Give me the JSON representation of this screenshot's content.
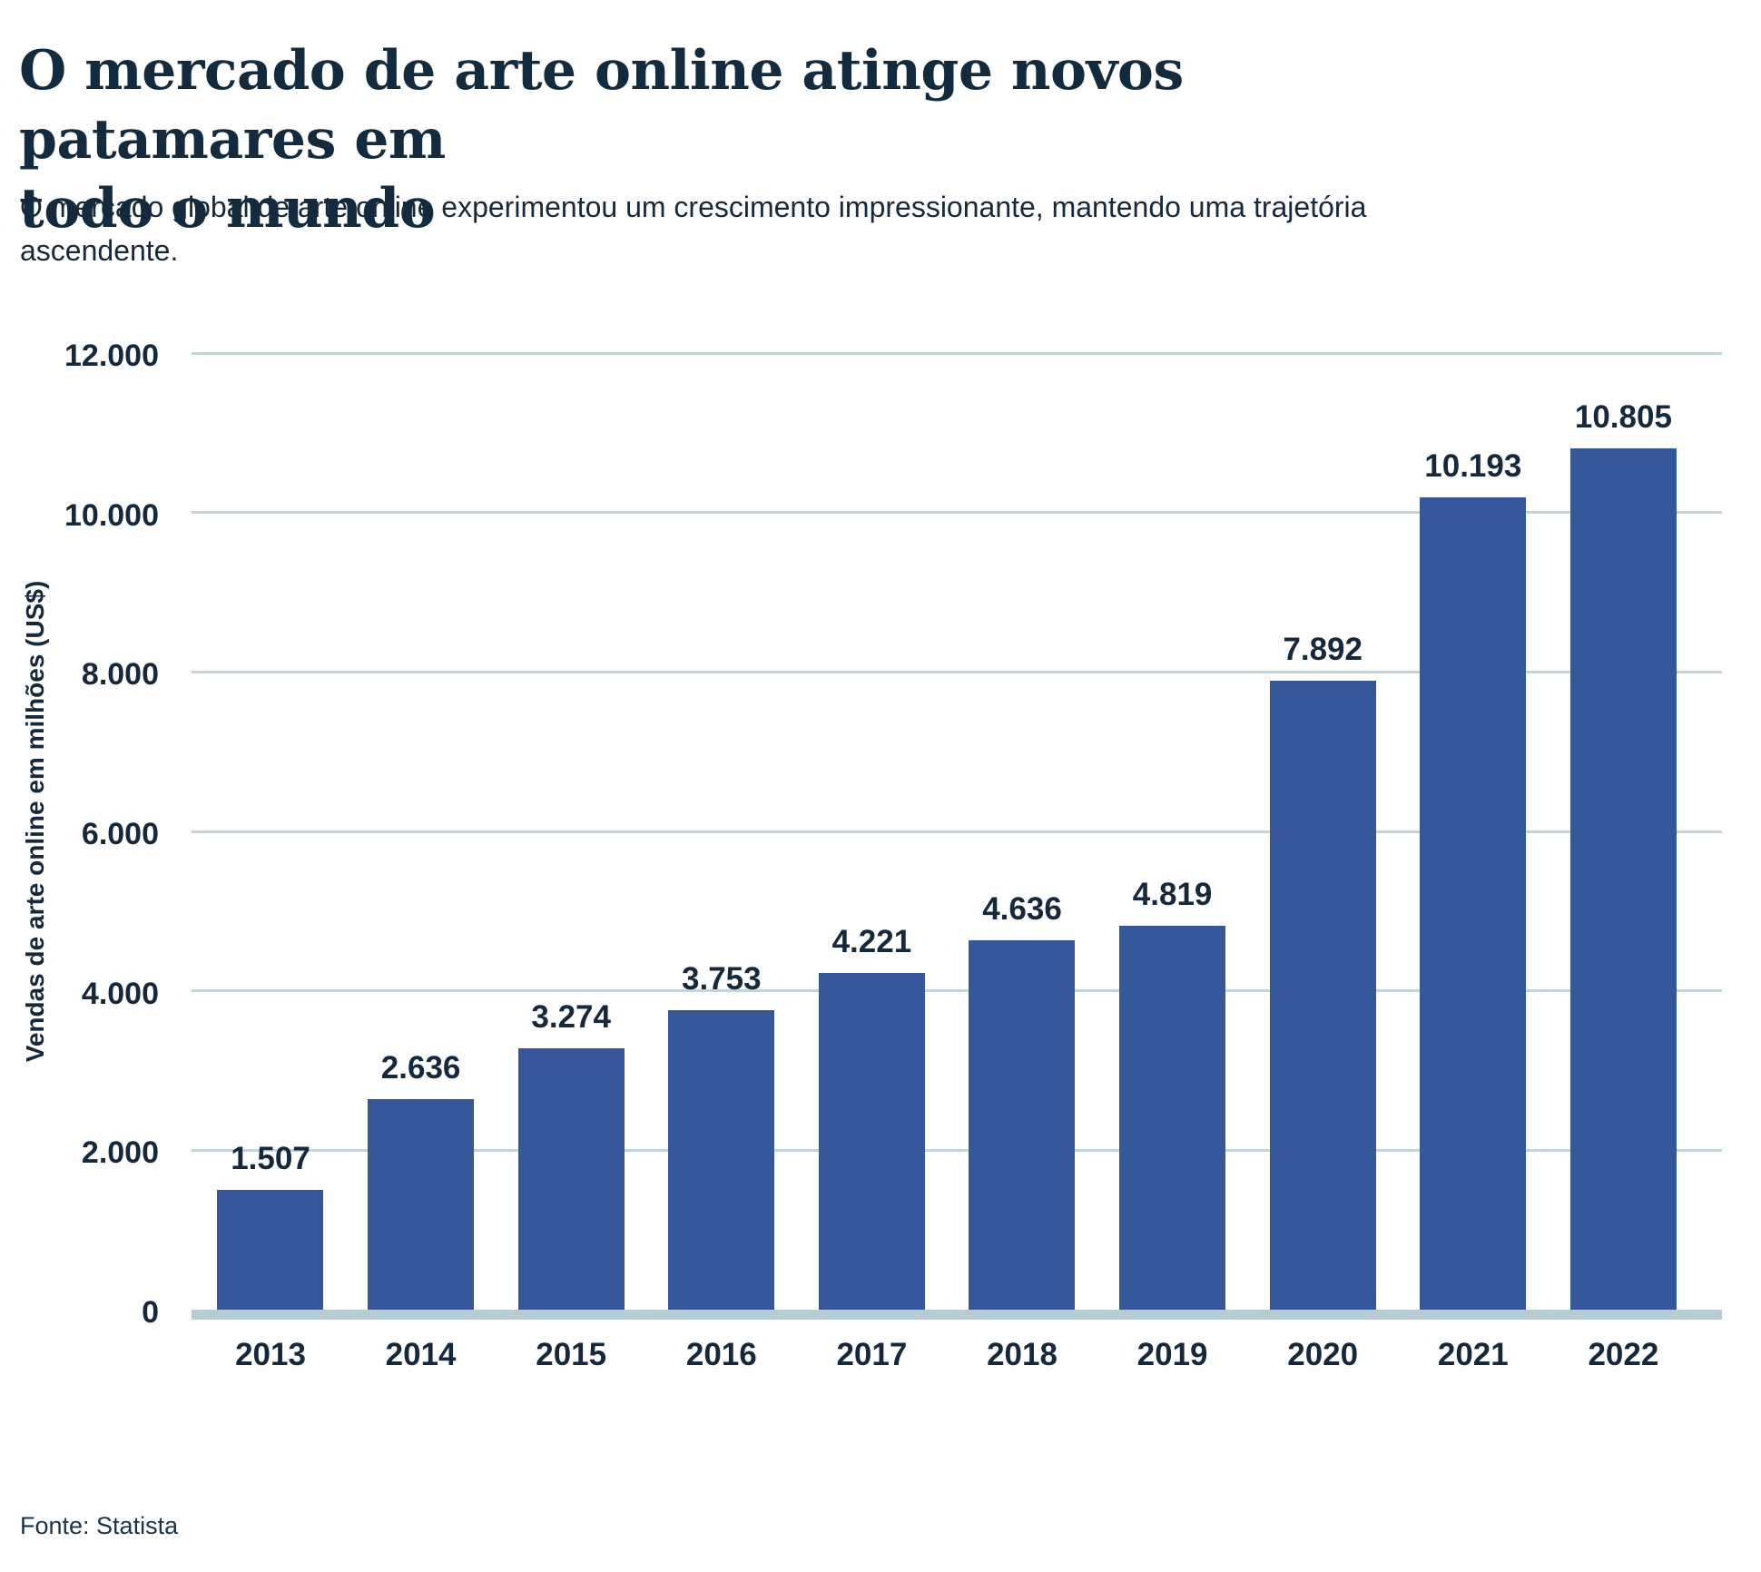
{
  "header": {
    "title": "O mercado de arte online atinge novos patamares em todo o mundo",
    "title_lines": [
      "O mercado de arte online atinge novos patamares em",
      "todo o mundo"
    ],
    "subtitle": "O mercado global de arte online experimentou um crescimento impressionante, mantendo uma trajetória ascendente.",
    "subtitle_lines": [
      "O mercado global de arte online experimentou um crescimento impressionante, mantendo uma trajetória",
      "ascendente."
    ]
  },
  "footer": {
    "source": "Fonte: Statista"
  },
  "chart_data": {
    "type": "bar",
    "title": "O mercado de arte online atinge novos patamares em todo o mundo",
    "subtitle": "O mercado global de arte online experimentou um crescimento impressionante, mantendo uma trajetória ascendente.",
    "categories": [
      "2013",
      "2014",
      "2015",
      "2016",
      "2017",
      "2018",
      "2019",
      "2020",
      "2021",
      "2022"
    ],
    "values": [
      1507,
      2636,
      3274,
      3753,
      4221,
      4636,
      4819,
      7892,
      10193,
      10805
    ],
    "value_labels": [
      "1.507",
      "2.636",
      "3.274",
      "3.753",
      "4.221",
      "4.636",
      "4.819",
      "7.892",
      "10.193",
      "10.805"
    ],
    "xlabel": "",
    "ylabel": "Vendas de arte online em milhões (US$)",
    "ylim": [
      0,
      12000
    ],
    "yticks": [
      {
        "value": 0,
        "label": "0"
      },
      {
        "value": 2000,
        "label": "2.000"
      },
      {
        "value": 4000,
        "label": "4.000"
      },
      {
        "value": 6000,
        "label": "6.000"
      },
      {
        "value": 8000,
        "label": "8.000"
      },
      {
        "value": 10000,
        "label": "10.000"
      },
      {
        "value": 12000,
        "label": "12.000"
      }
    ],
    "grid": true,
    "legend": false,
    "source": "Fonte: Statista",
    "colors": {
      "bar": "#36589A",
      "gridline": "#C2D5D8",
      "axis_line": "#B5CDD0",
      "ink": "#16293C",
      "title": "#122B3F"
    }
  }
}
